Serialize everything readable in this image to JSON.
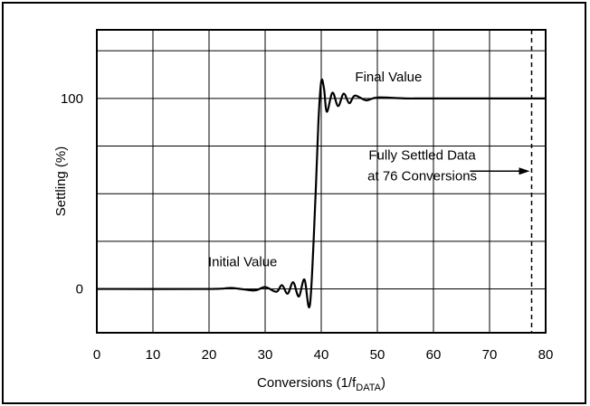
{
  "chart_data": {
    "type": "line",
    "title": "",
    "xlabel": "Conversions (1/f",
    "xlabel_sub": "DATA",
    "xlabel_tail": ")",
    "ylabel": "Settling (%)",
    "xlim": [
      0,
      80
    ],
    "ylim": [
      -23,
      136
    ],
    "x_ticks": [
      0,
      10,
      20,
      30,
      40,
      50,
      60,
      70,
      80
    ],
    "x_tick_labels": [
      "0",
      "10",
      "20",
      "30",
      "40",
      "50",
      "60",
      "70",
      "80"
    ],
    "y_ticks": [
      0,
      100
    ],
    "y_tick_labels": [
      "0",
      "100"
    ],
    "grid": true,
    "series": [
      {
        "x": [
          0,
          20,
          24,
          28,
          30,
          32,
          33,
          34,
          35,
          36,
          37,
          38,
          39,
          39.5,
          40,
          40.5,
          41,
          42,
          43,
          44,
          45,
          46,
          48,
          50,
          55,
          60,
          80
        ],
        "y": [
          0,
          0,
          0.5,
          -0.8,
          1,
          -1.5,
          2,
          -2.5,
          3.5,
          -4,
          5,
          -8,
          50,
          88,
          109,
          105,
          93,
          103,
          96,
          102.5,
          97.5,
          101.5,
          99,
          100.5,
          100,
          100,
          100
        ]
      }
    ],
    "annotations": [
      {
        "text": "Final Value",
        "x": 52,
        "y": 109
      },
      {
        "text": "Initial Value",
        "x": 26,
        "y": 12
      },
      {
        "text": "Fully Settled Data",
        "x": 58,
        "y": 68
      },
      {
        "text": "at 76 Conversions",
        "x": 58,
        "y": 57
      }
    ],
    "settled_marker_x": 77.5
  }
}
